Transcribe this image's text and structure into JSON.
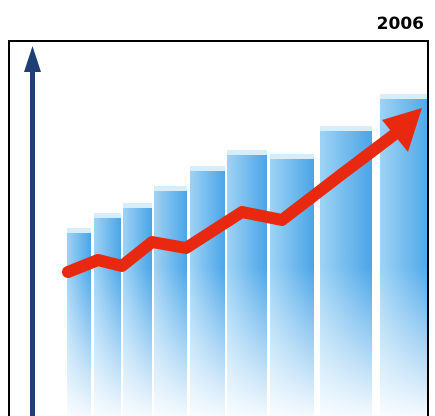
{
  "header": {
    "year": "2006"
  }
}
